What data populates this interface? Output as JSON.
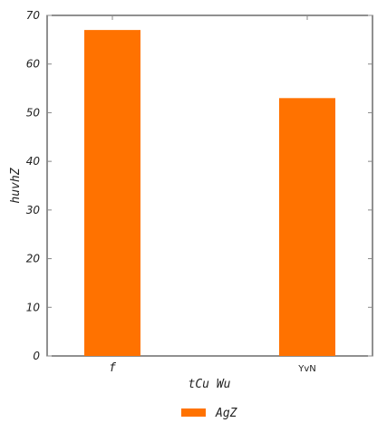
{
  "chart_data": {
    "type": "bar",
    "categories": [
      "f",
      "YvN"
    ],
    "series": [
      {
        "name": "AgZ",
        "values": [
          67,
          53
        ],
        "color": "#ff7200"
      }
    ],
    "title": "",
    "xlabel": "tCu Wu",
    "ylabel": "huvhZ",
    "ylim": [
      0,
      70
    ],
    "yticks": [
      0,
      10,
      20,
      30,
      40,
      50,
      60,
      70
    ],
    "grid": false,
    "legend_position": "bottom-center"
  }
}
